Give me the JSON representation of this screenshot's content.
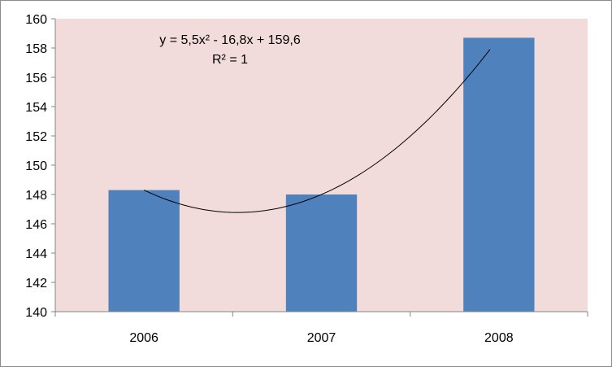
{
  "chart_data": {
    "type": "bar",
    "categories": [
      "2006",
      "2007",
      "2008"
    ],
    "series": [
      {
        "values": [
          148.3,
          148.0,
          158.7
        ]
      }
    ],
    "trendline": {
      "kind": "polynomial-2",
      "coefficients": [
        5.5,
        -16.8,
        159.6
      ],
      "equation_label": "y = 5,5x² - 16,8x + 159,6",
      "r2_label": "R² = 1"
    },
    "ylim": [
      140,
      160
    ],
    "yticks": [
      "140",
      "142",
      "144",
      "146",
      "148",
      "150",
      "152",
      "154",
      "156",
      "158",
      "160"
    ],
    "grid": false,
    "legend": "none",
    "xlabel": "",
    "ylabel": "",
    "title": ""
  },
  "colors": {
    "plot_background": "#f2dcdb",
    "bar": "#4f81bd",
    "trendline": "#000000",
    "axis": "#868686"
  }
}
